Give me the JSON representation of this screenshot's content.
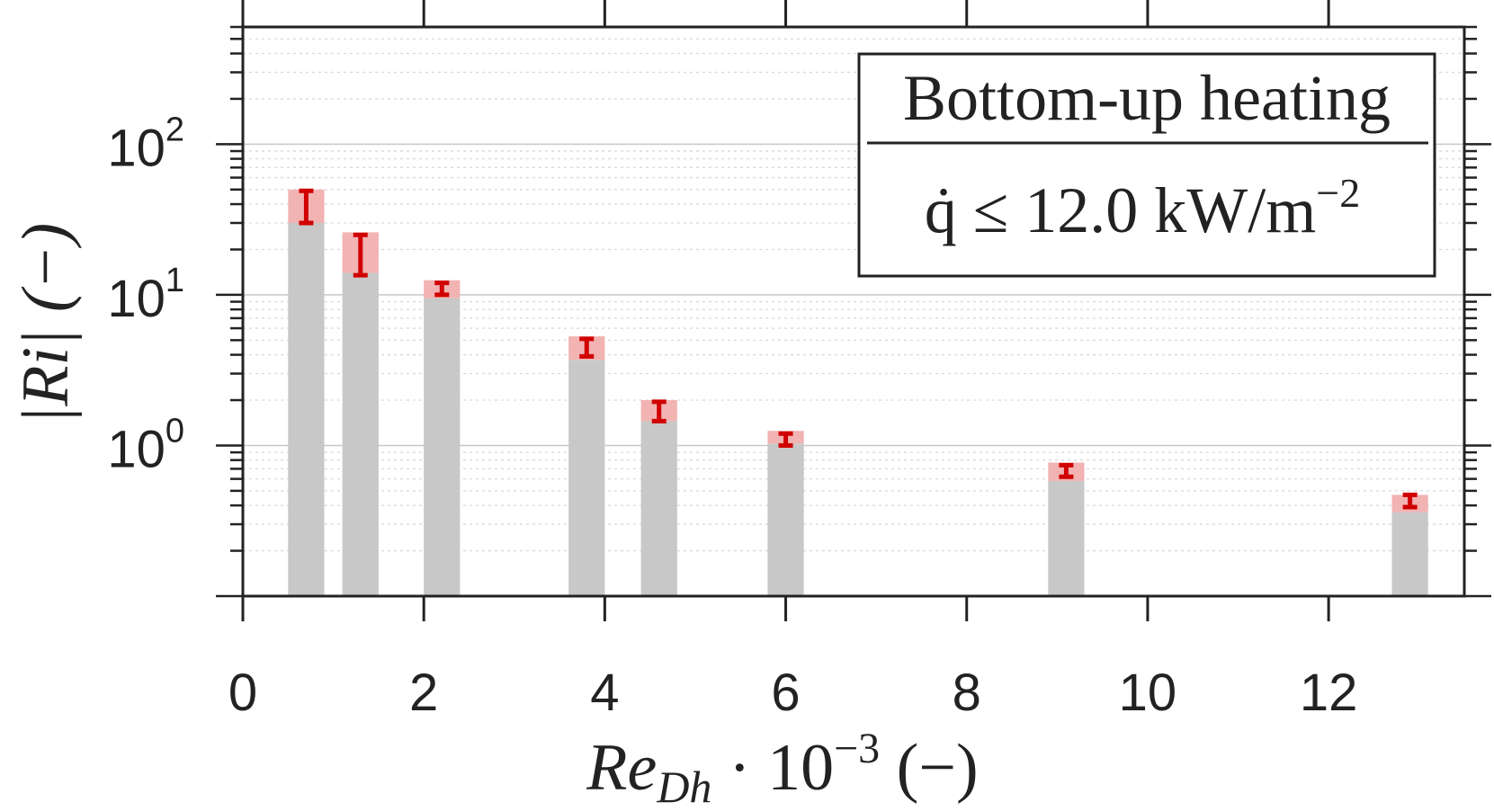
{
  "chart_data": {
    "type": "bar",
    "scale_y": "log",
    "x": [
      0.7,
      1.3,
      2.2,
      3.8,
      4.6,
      6.0,
      9.1,
      12.9
    ],
    "values": [
      50,
      26,
      12.5,
      5.3,
      2.0,
      1.25,
      0.77,
      0.47
    ],
    "uncertainty_band": [
      [
        30,
        50
      ],
      [
        14,
        26
      ],
      [
        9.5,
        12.5
      ],
      [
        3.7,
        5.3
      ],
      [
        1.45,
        2.0
      ],
      [
        1.03,
        1.25
      ],
      [
        0.58,
        0.77
      ],
      [
        0.36,
        0.47
      ]
    ],
    "error_low": [
      30,
      13.5,
      10,
      3.9,
      1.45,
      1.0,
      0.62,
      0.39
    ],
    "error_high": [
      49,
      25,
      12,
      5.1,
      1.95,
      1.2,
      0.74,
      0.47
    ],
    "xlim": [
      0,
      13.5
    ],
    "ylim": [
      0.1,
      600
    ],
    "x_ticks": [
      "0",
      "2",
      "4",
      "6",
      "8",
      "10",
      "12"
    ],
    "y_ticks": [
      {
        "base": "10",
        "exp": "2",
        "value": 100
      },
      {
        "base": "10",
        "exp": "1",
        "value": 10
      },
      {
        "base": "10",
        "exp": "0",
        "value": 1
      }
    ],
    "xlabel": {
      "main": "Re",
      "sub": "Dh",
      "rest": " · 10",
      "exp": "−3",
      "unit": " (−)"
    },
    "ylabel": {
      "main": "|Ri| (−)"
    },
    "legend": {
      "placement": "top-right",
      "line1": "Bottom-up heating",
      "line2_pre": "q̇ ≤ 12.0 kW/m",
      "line2_exp": "−2"
    },
    "grid": true,
    "colors": {
      "bar": "#c8c8c8",
      "band": "#f2b3b3",
      "error": "#d00000",
      "axis": "#222222",
      "grid_major": "#c8c8c8",
      "grid_minor": "#d9d9d9"
    }
  }
}
